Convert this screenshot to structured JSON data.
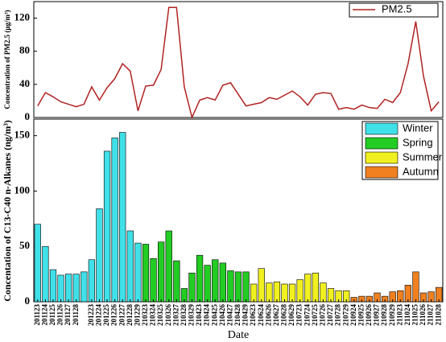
{
  "chart_data": [
    {
      "type": "line",
      "ylabel": "Concentration of PM2.5 (μg/m³)",
      "series": [
        {
          "name": "PM2.5",
          "color": "#b22222",
          "values": [
            14,
            30,
            25,
            19,
            16,
            13,
            16,
            37,
            21,
            36,
            47,
            65,
            56,
            8,
            38,
            39,
            58,
            133,
            133,
            37,
            0,
            21,
            24,
            21,
            39,
            42,
            28,
            14,
            16,
            18,
            24,
            22,
            27,
            32,
            25,
            15,
            28,
            30,
            29,
            10,
            12,
            10,
            15,
            12,
            11,
            22,
            18,
            30,
            65,
            116,
            50,
            8,
            19
          ]
        }
      ],
      "ylim": [
        0,
        140
      ],
      "yticks": [
        0,
        40,
        80,
        120
      ],
      "legend": "top-right"
    },
    {
      "type": "bar",
      "ylabel": "Concentation of C13-C40 n-Alkanes (ng/m³)",
      "xlabel": "Date",
      "categories": [
        "201123",
        "201124",
        "201125",
        "201126",
        "201127",
        "201128",
        null,
        "201223",
        "201224",
        "201225",
        "201226",
        "201227",
        "201228",
        "201229",
        "210323",
        "210324",
        "210325",
        "210326",
        "210327",
        "210328",
        "210329",
        "210423",
        "210424",
        "210425",
        "210426",
        "210427",
        "210428",
        "210429",
        "210623",
        "210624",
        "210626",
        "210627",
        "210628",
        "210629",
        "210723",
        "210724",
        "210725",
        "210726",
        "210727",
        "210728",
        "210729",
        "210924",
        "210925",
        "210926",
        "210927",
        "210928",
        "210929",
        "211023",
        "211024",
        "211025",
        "211026",
        "211027",
        "211028"
      ],
      "series": [
        {
          "name": "Winter",
          "color": "#40e0e8",
          "values": [
            70,
            50,
            29,
            24,
            25,
            25,
            27,
            38,
            84,
            136,
            148,
            153,
            64,
            53,
            null,
            null,
            null,
            null,
            null,
            null,
            null,
            null,
            null,
            null,
            null,
            null,
            null,
            null,
            null,
            null,
            null,
            null,
            null,
            null,
            null,
            null,
            null,
            null,
            null,
            null,
            null,
            null,
            null,
            null,
            null,
            null,
            null,
            null,
            null,
            null,
            null,
            null,
            null
          ]
        },
        {
          "name": "Spring",
          "color": "#22cc22",
          "values": [
            null,
            null,
            null,
            null,
            null,
            null,
            null,
            null,
            null,
            null,
            null,
            null,
            null,
            null,
            52,
            39,
            54,
            64,
            37,
            12,
            26,
            42,
            33,
            38,
            35,
            28,
            27,
            27,
            null,
            null,
            null,
            null,
            null,
            null,
            null,
            null,
            null,
            null,
            null,
            null,
            null,
            null,
            null,
            null,
            null,
            null,
            null,
            null,
            null,
            null,
            null,
            null,
            null
          ]
        },
        {
          "name": "Summer",
          "color": "#f0f020",
          "values": [
            null,
            null,
            null,
            null,
            null,
            null,
            null,
            null,
            null,
            null,
            null,
            null,
            null,
            null,
            null,
            null,
            null,
            null,
            null,
            null,
            null,
            null,
            null,
            null,
            null,
            null,
            null,
            null,
            16,
            30,
            17,
            18,
            16,
            16,
            20,
            25,
            26,
            17,
            12,
            10,
            10,
            null,
            null,
            null,
            null,
            null,
            null,
            null,
            null,
            null,
            null,
            null,
            null
          ]
        },
        {
          "name": "Autumn",
          "color": "#f08020",
          "values": [
            null,
            null,
            null,
            null,
            null,
            null,
            null,
            null,
            null,
            null,
            null,
            null,
            null,
            null,
            null,
            null,
            null,
            null,
            null,
            null,
            null,
            null,
            null,
            null,
            null,
            null,
            null,
            null,
            null,
            null,
            null,
            null,
            null,
            null,
            null,
            null,
            null,
            null,
            null,
            null,
            null,
            4,
            5,
            5,
            8,
            5,
            9,
            10,
            15,
            27,
            8,
            9,
            13
          ]
        }
      ],
      "ylim": [
        0,
        165
      ],
      "yticks": [
        0,
        50,
        100,
        150
      ],
      "legend": "top-right"
    }
  ]
}
